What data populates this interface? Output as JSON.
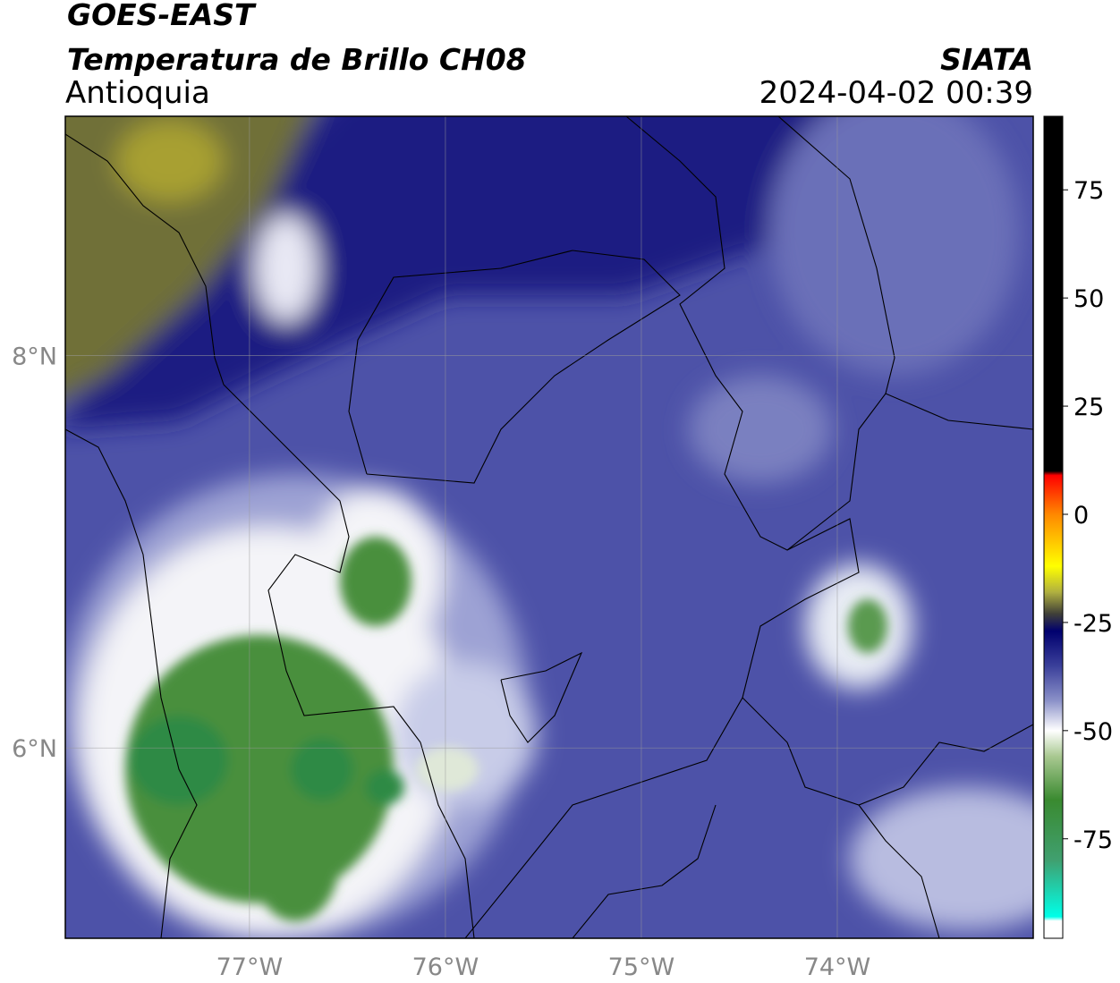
{
  "header": {
    "satellite": "GOES-EAST",
    "product": "Temperatura de Brillo CH08",
    "region": "Antioquia",
    "source": "SIATA",
    "datetime": "2024-04-02 00:39"
  },
  "map": {
    "xlim": [
      -77.94,
      -73.0
    ],
    "ylim": [
      5.03,
      9.22
    ],
    "grid": true,
    "xticks": [
      {
        "value": -77,
        "label": "77°W"
      },
      {
        "value": -76,
        "label": "76°W"
      },
      {
        "value": -75,
        "label": "75°W"
      },
      {
        "value": -74,
        "label": "74°W"
      }
    ],
    "yticks": [
      {
        "value": 8,
        "label": "8°N"
      },
      {
        "value": 6,
        "label": "6°N"
      }
    ]
  },
  "colorbar": {
    "lim": [
      -98,
      92
    ],
    "ticks": [
      75,
      50,
      25,
      0,
      -25,
      -50,
      -75
    ],
    "colormap": [
      {
        "value": 92,
        "color": "#000000"
      },
      {
        "value": 10,
        "color": "#000000"
      },
      {
        "value": 9,
        "color": "#ff0000"
      },
      {
        "value": 0,
        "color": "#ff8800"
      },
      {
        "value": -12,
        "color": "#ffff00"
      },
      {
        "value": -18,
        "color": "#b0b040"
      },
      {
        "value": -23,
        "color": "#404038"
      },
      {
        "value": -27,
        "color": "#00006e"
      },
      {
        "value": -35,
        "color": "#3a3f9a"
      },
      {
        "value": -43,
        "color": "#8a90c8"
      },
      {
        "value": -50,
        "color": "#ffffff"
      },
      {
        "value": -56,
        "color": "#a8c890"
      },
      {
        "value": -66,
        "color": "#3a8a30"
      },
      {
        "value": -80,
        "color": "#40a070"
      },
      {
        "value": -93,
        "color": "#00ffe8"
      },
      {
        "value": -94,
        "color": "#ffffff"
      },
      {
        "value": -98,
        "color": "#ffffff"
      }
    ]
  }
}
